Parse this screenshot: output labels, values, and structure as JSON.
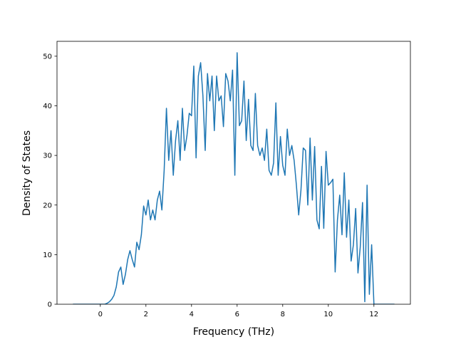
{
  "chart_data": {
    "type": "line",
    "x_label": "Frequency (THz)",
    "y_label": "Density of States",
    "x": [
      -1.2,
      0.2,
      0.3,
      0.4,
      0.5,
      0.6,
      0.7,
      0.8,
      0.9,
      1.0,
      1.1,
      1.2,
      1.3,
      1.4,
      1.5,
      1.6,
      1.7,
      1.8,
      1.9,
      2.0,
      2.1,
      2.2,
      2.3,
      2.4,
      2.5,
      2.6,
      2.7,
      2.8,
      2.9,
      3.0,
      3.1,
      3.2,
      3.3,
      3.4,
      3.5,
      3.6,
      3.7,
      3.8,
      3.9,
      4.0,
      4.1,
      4.2,
      4.3,
      4.4,
      4.5,
      4.6,
      4.7,
      4.8,
      4.9,
      5.0,
      5.1,
      5.2,
      5.3,
      5.4,
      5.5,
      5.6,
      5.7,
      5.8,
      5.9,
      6.0,
      6.1,
      6.2,
      6.3,
      6.4,
      6.5,
      6.6,
      6.7,
      6.8,
      6.9,
      7.0,
      7.1,
      7.2,
      7.3,
      7.4,
      7.5,
      7.6,
      7.7,
      7.8,
      7.9,
      8.0,
      8.1,
      8.2,
      8.3,
      8.4,
      8.5,
      8.6,
      8.7,
      8.8,
      8.9,
      9.0,
      9.1,
      9.2,
      9.3,
      9.4,
      9.5,
      9.6,
      9.7,
      9.8,
      9.9,
      10.0,
      10.1,
      10.2,
      10.3,
      10.4,
      10.5,
      10.6,
      10.7,
      10.8,
      10.9,
      11.0,
      11.1,
      11.2,
      11.3,
      11.4,
      11.5,
      11.6,
      11.7,
      11.8,
      11.9,
      12.0,
      12.9
    ],
    "series": [
      {
        "name": "DOS",
        "color": "#1f77b4",
        "values": [
          0,
          0,
          0.2,
          0.5,
          1,
          1.8,
          3.5,
          6.5,
          7.5,
          4,
          6,
          9,
          10.8,
          9,
          7.5,
          12.5,
          11,
          14,
          19.8,
          18,
          21,
          17,
          19,
          17,
          21,
          22.8,
          19,
          27,
          39.5,
          29,
          35,
          26,
          33,
          37,
          29,
          39.5,
          31,
          34,
          38.5,
          38,
          48,
          29.5,
          46,
          48.7,
          42,
          31,
          46.5,
          41,
          46,
          35,
          46,
          41,
          42,
          35.8,
          46.5,
          45,
          41,
          47.2,
          26,
          50.7,
          36,
          37,
          45,
          33,
          41.3,
          32,
          31,
          42.5,
          32,
          30,
          31.5,
          29,
          35.3,
          27,
          26,
          28.5,
          40.6,
          26,
          33.8,
          28,
          26,
          35.3,
          30,
          32,
          29,
          24,
          18,
          23,
          31.5,
          31,
          20,
          33.5,
          21,
          31.8,
          17,
          15.2,
          27.8,
          15.3,
          30.8,
          24,
          24.5,
          25.2,
          6.5,
          17,
          22,
          14,
          26.5,
          13.5,
          21,
          8.7,
          12,
          19.3,
          6.3,
          11.5,
          20.5,
          0.5,
          24,
          2,
          12,
          0,
          0
        ]
      }
    ],
    "xlim": [
      -1.9,
      13.6
    ],
    "xticks": [
      0,
      2,
      4,
      6,
      8,
      10,
      12
    ],
    "ylim": [
      0,
      53
    ],
    "yticks": [
      0,
      10,
      20,
      30,
      40,
      50
    ],
    "grid": false
  }
}
